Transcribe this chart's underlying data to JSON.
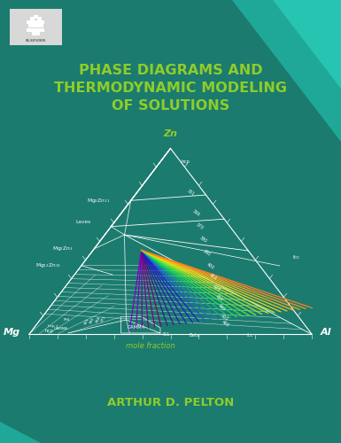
{
  "bg_color": "#1b7b6e",
  "title_line1": "PHASE DIAGRAMS AND",
  "title_line2": "THERMODYNAMIC MODELING",
  "title_line3": "OF SOLUTIONS",
  "title_color": "#8fcc2a",
  "author": "ARTHUR D. PELTON",
  "author_color": "#8fcc2a",
  "corner_color1": "#1fa898",
  "corner_color2": "#27c4b2",
  "elsevier_box_color": "#d8d8d8",
  "elsevier_text_color": "#888888",
  "mole_fraction_label": "mole fraction",
  "mole_fraction_color": "#8fcc2a",
  "vertex_Zn": [
    0.5,
    0.665
  ],
  "vertex_Mg": [
    0.085,
    0.245
  ],
  "vertex_Al": [
    0.915,
    0.245
  ],
  "label_color": "white",
  "label_color_green": "#8fcc2a"
}
